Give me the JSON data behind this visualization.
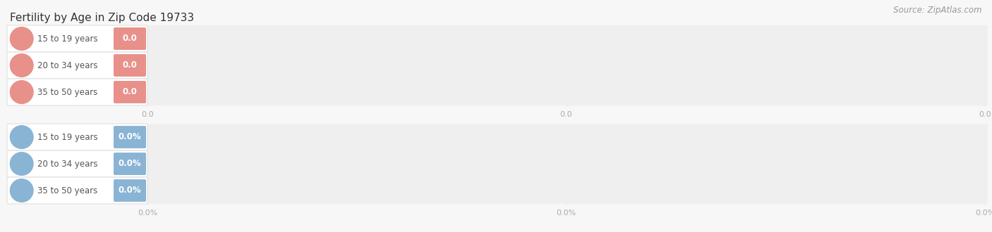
{
  "title": "Fertility by Age in Zip Code 19733",
  "source": "Source: ZipAtlas.com",
  "top_section": {
    "categories": [
      "15 to 19 years",
      "20 to 34 years",
      "35 to 50 years"
    ],
    "values": [
      0.0,
      0.0,
      0.0
    ],
    "badge_color": "#e8908a",
    "circle_color": "#e8908a",
    "tick_labels": [
      "0.0",
      "0.0",
      "0.0"
    ]
  },
  "bottom_section": {
    "categories": [
      "15 to 19 years",
      "20 to 34 years",
      "35 to 50 years"
    ],
    "values": [
      0.0,
      0.0,
      0.0
    ],
    "badge_color": "#89b4d4",
    "circle_color": "#89b4d4",
    "tick_labels": [
      "0.0%",
      "0.0%",
      "0.0%"
    ]
  },
  "bg_color": "#f7f7f7",
  "bar_bg_color": "#efefef",
  "pill_bg_color": "#ffffff",
  "title_fontsize": 11,
  "label_fontsize": 8.5,
  "tick_fontsize": 8,
  "source_fontsize": 8.5
}
